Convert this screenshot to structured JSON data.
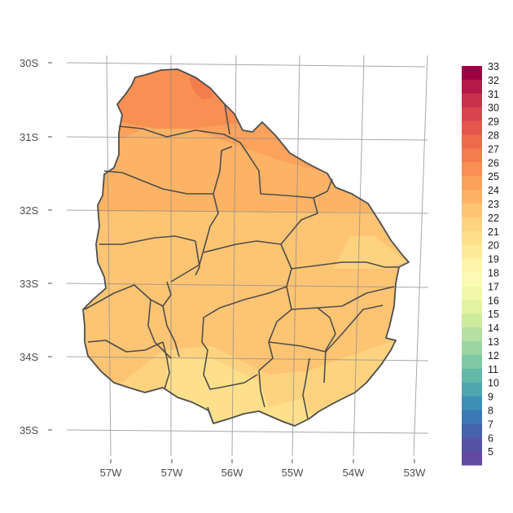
{
  "map": {
    "lat_labels": [
      "30S",
      "31S",
      "32S",
      "33S",
      "34S",
      "35S"
    ],
    "lon_labels": [
      "57W",
      "57W",
      "56W",
      "55W",
      "54W",
      "53W"
    ]
  },
  "legend": {
    "values": [
      33,
      32,
      31,
      30,
      29,
      28,
      27,
      26,
      25,
      24,
      23,
      22,
      21,
      20,
      19,
      18,
      17,
      16,
      15,
      14,
      13,
      12,
      11,
      10,
      9,
      8,
      7,
      6,
      5
    ],
    "colors": [
      "#9e0142",
      "#b51947",
      "#c8304c",
      "#d9444e",
      "#e4574d",
      "#ef6a4a",
      "#f47d4d",
      "#f89053",
      "#fba25c",
      "#fdb366",
      "#fdc473",
      "#fdd380",
      "#fee08b",
      "#feeb9a",
      "#fef5aa",
      "#fbfbb5",
      "#f1f9a9",
      "#e2f3a1",
      "#cdea9d",
      "#b5e0a1",
      "#9bd5a3",
      "#7fcaa5",
      "#64b8a9",
      "#4fa5b0",
      "#3d8fb6",
      "#3a79b5",
      "#4563ad",
      "#5652a6",
      "#6248a0"
    ]
  }
}
